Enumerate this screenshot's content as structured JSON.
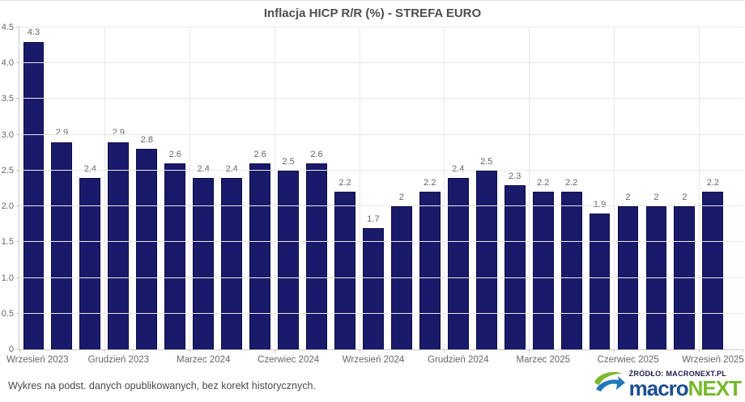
{
  "title": "Inflacja HICP R/R (%) - STREFA EURO",
  "chart_data": {
    "type": "bar",
    "title": "Inflacja HICP R/R (%) - STREFA EURO",
    "categories": [
      "Wrzesień 2023",
      "",
      "",
      "Grudzień 2023",
      "",
      "",
      "Marzec 2024",
      "",
      "",
      "Czerwiec 2024",
      "",
      "",
      "Wrzesień 2024",
      "",
      "",
      "Grudzień 2024",
      "",
      "",
      "Marzec 2025",
      "",
      "",
      "Czerwiec 2025",
      "",
      "",
      "Wrzesień 2025"
    ],
    "values": [
      4.3,
      2.9,
      2.4,
      2.9,
      2.8,
      2.6,
      2.4,
      2.4,
      2.6,
      2.5,
      2.6,
      2.2,
      1.7,
      2,
      2.2,
      2.4,
      2.5,
      2.3,
      2.2,
      2.2,
      1.9,
      2,
      2,
      2,
      2.2
    ],
    "value_labels": [
      "4.3",
      "2.9",
      "2.4",
      "2.9",
      "2.8",
      "2.6",
      "2.4",
      "2.4",
      "2.6",
      "2.5",
      "2.6",
      "2.2",
      "1.7",
      "2",
      "2.2",
      "2.4",
      "2.5",
      "2.3",
      "2.2",
      "2.2",
      "1.9",
      "2",
      "2",
      "2",
      "2.2"
    ],
    "x_tick_labels": [
      "Wrzesień 2023",
      "Grudzień 2023",
      "Marzec 2024",
      "Czerwiec 2024",
      "Wrzesień 2024",
      "Grudzień 2024",
      "Marzec 2025",
      "Czerwiec 2025",
      "Wrzesień 2025"
    ],
    "x_tick_every": 3,
    "y_ticks": [
      0,
      0.5,
      1,
      1.5,
      2,
      2.5,
      3,
      3.5,
      4,
      4.5
    ],
    "y_tick_labels": [
      "0",
      "0.5",
      "1.0",
      "1.5",
      "2.0",
      "2.5",
      "3.0",
      "3.5",
      "4.0",
      "4.5"
    ],
    "ylim": [
      0,
      4.5
    ],
    "xlabel": "",
    "ylabel": "",
    "grid": true,
    "legend": "none",
    "bar_color": "#1a1a6b"
  },
  "footer": {
    "note": "Wykres na podst. danych opublikowanych, bez korekt historycznych.",
    "source_label": "ŹRÓDŁO: MACRONEXT.PL",
    "brand_macro": "macro",
    "brand_next": "NEXT"
  },
  "colors": {
    "bar": "#1a1a6b",
    "bar_border": "#0d0d45",
    "grid": "#e8e8e8",
    "axis": "#c9c9c9",
    "tick_label": "#666666",
    "title": "#4f4f4f",
    "brand_blue": "#1d4e91",
    "brand_green": "#76b82a",
    "source_navy": "#1b1b4e"
  }
}
